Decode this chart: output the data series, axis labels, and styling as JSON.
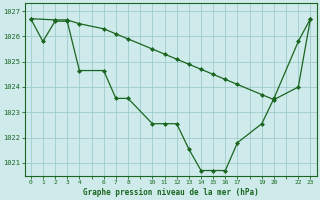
{
  "title": "Graphe pression niveau de la mer (hPa)",
  "bg_color": "#ceeaea",
  "grid_color": "#a0cccc",
  "line_color": "#1a6620",
  "marker_color": "#1a6620",
  "ylim": [
    1020.5,
    1027.3
  ],
  "yticks": [
    1021,
    1022,
    1023,
    1024,
    1025,
    1026,
    1027
  ],
  "xtick_labels": [
    "0",
    "1",
    "2",
    "3",
    "4",
    "",
    "6",
    "7",
    "8",
    "",
    "10",
    "11",
    "12",
    "13",
    "14",
    "15",
    "16",
    "17",
    "",
    "19",
    "20",
    "",
    "22",
    "23"
  ],
  "xtick_positions": [
    0,
    1,
    2,
    3,
    4,
    5,
    6,
    7,
    8,
    9,
    10,
    11,
    12,
    13,
    14,
    15,
    16,
    17,
    18,
    19,
    20,
    21,
    22,
    23
  ],
  "line1_x": [
    0,
    2,
    3,
    4,
    6,
    7,
    8,
    10,
    11,
    12,
    13,
    14,
    15,
    16,
    17,
    19,
    20,
    22,
    23
  ],
  "line1_y": [
    1026.7,
    1026.65,
    1026.65,
    1026.5,
    1026.3,
    1026.1,
    1025.9,
    1025.5,
    1025.3,
    1025.1,
    1024.9,
    1024.7,
    1024.5,
    1024.3,
    1024.1,
    1023.7,
    1023.5,
    1024.0,
    1026.7
  ],
  "line2_x": [
    0,
    1,
    2,
    3,
    4,
    6,
    7,
    8,
    10,
    11,
    12,
    13,
    14,
    15,
    16,
    17,
    19,
    20,
    22,
    23
  ],
  "line2_y": [
    1026.7,
    1025.8,
    1026.6,
    1026.6,
    1024.65,
    1024.65,
    1023.55,
    1023.55,
    1022.55,
    1022.55,
    1022.55,
    1021.55,
    1020.7,
    1020.7,
    1020.7,
    1021.8,
    1022.55,
    1023.55,
    1025.8,
    1026.7
  ]
}
